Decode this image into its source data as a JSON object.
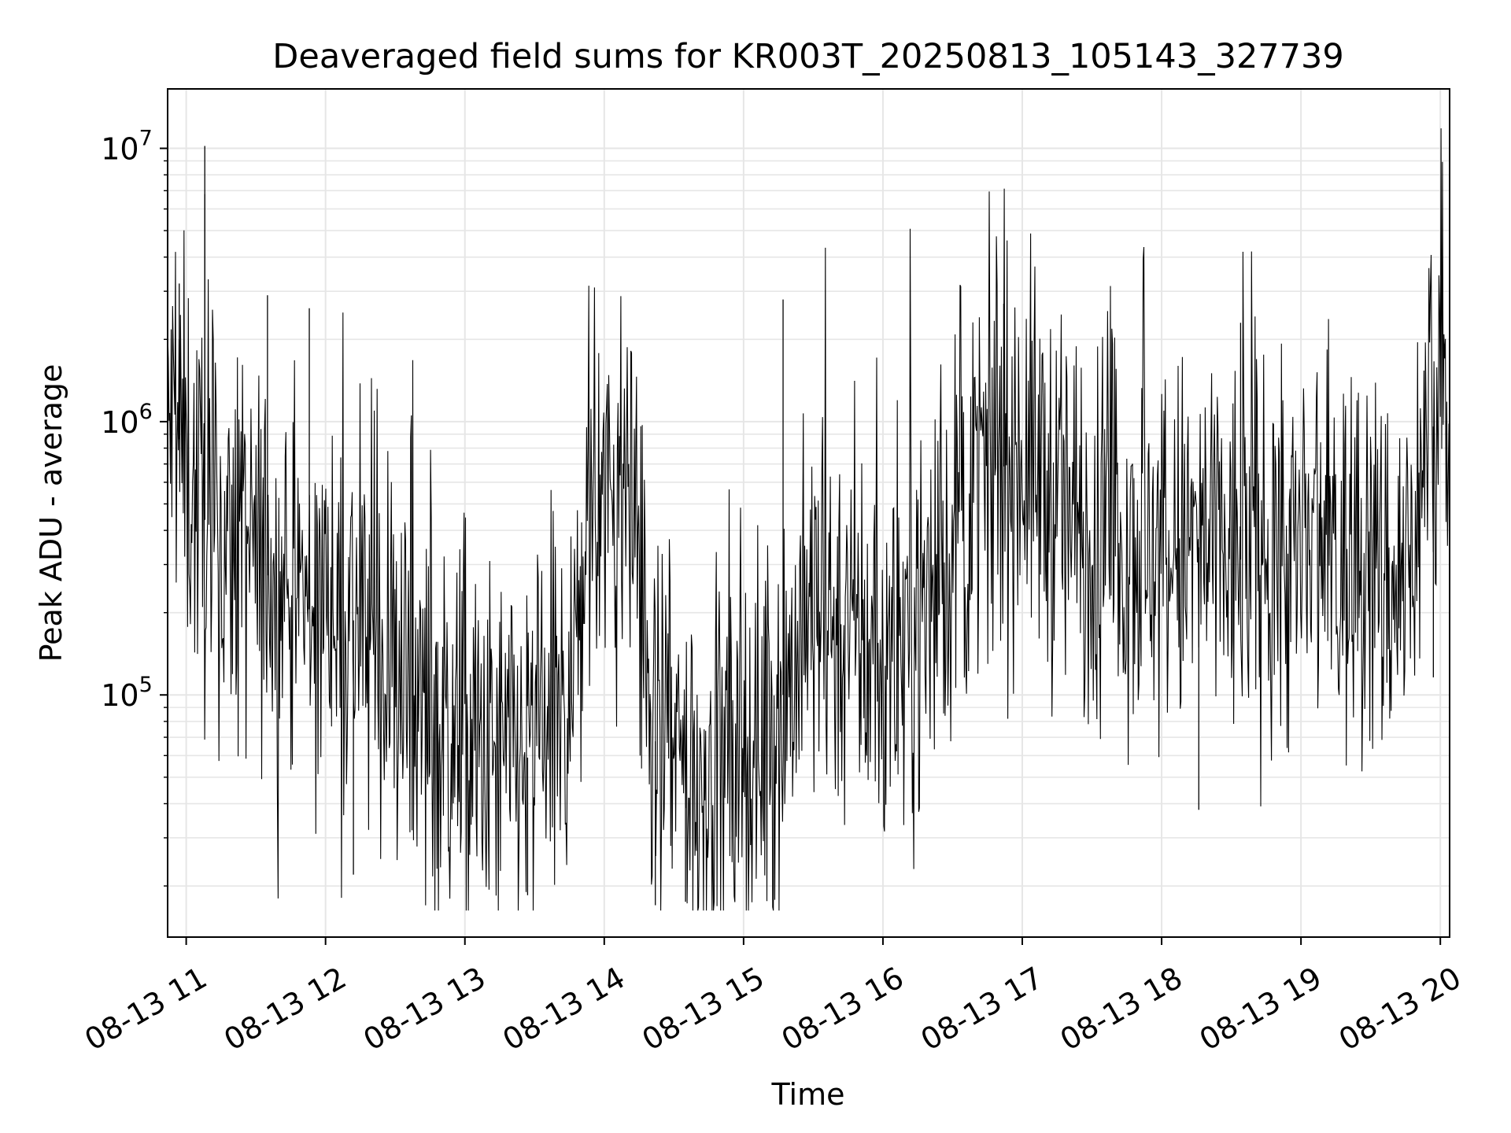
{
  "chart_data": {
    "type": "line",
    "title": "Deaveraged field sums for KR003T_20250813_105143_327739",
    "xlabel": "Time",
    "ylabel": "Peak ADU - average",
    "x_scale": "time",
    "y_scale": "log",
    "xlim": [
      "2025-08-13 10:52",
      "2025-08-13 20:04"
    ],
    "ylim": [
      13000,
      16500000
    ],
    "grid": true,
    "legend": "none",
    "line_color": "#000000",
    "grid_color": "#e6e6e6",
    "x_ticks": [
      "08-13 11",
      "08-13 12",
      "08-13 13",
      "08-13 14",
      "08-13 15",
      "08-13 16",
      "08-13 17",
      "08-13 18",
      "08-13 19",
      "08-13 20"
    ],
    "y_ticks": [
      {
        "base": "10",
        "exp": "5"
      },
      {
        "base": "10",
        "exp": "6"
      },
      {
        "base": "10",
        "exp": "7"
      }
    ],
    "series": [
      {
        "x": [
          "2025-08-13 10:52",
          "2025-08-13 10:55",
          "2025-08-13 10:58",
          "2025-08-13 11:00",
          "2025-08-13 11:05",
          "2025-08-13 11:10",
          "2025-08-13 11:15",
          "2025-08-13 11:20",
          "2025-08-13 11:30",
          "2025-08-13 11:40",
          "2025-08-13 11:50",
          "2025-08-13 12:00",
          "2025-08-13 12:15",
          "2025-08-13 12:30",
          "2025-08-13 12:45",
          "2025-08-13 13:00",
          "2025-08-13 13:15",
          "2025-08-13 13:30",
          "2025-08-13 13:45",
          "2025-08-13 13:55",
          "2025-08-13 14:15",
          "2025-08-13 14:20",
          "2025-08-13 14:40",
          "2025-08-13 15:00",
          "2025-08-13 15:15",
          "2025-08-13 15:30",
          "2025-08-13 15:45",
          "2025-08-13 16:00",
          "2025-08-13 16:15",
          "2025-08-13 16:30",
          "2025-08-13 16:45",
          "2025-08-13 17:00",
          "2025-08-13 17:15",
          "2025-08-13 17:30",
          "2025-08-13 17:45",
          "2025-08-13 18:00",
          "2025-08-13 18:15",
          "2025-08-13 18:30",
          "2025-08-13 18:45",
          "2025-08-13 19:00",
          "2025-08-13 19:15",
          "2025-08-13 19:30",
          "2025-08-13 19:45",
          "2025-08-13 19:55",
          "2025-08-13 20:04"
        ],
        "y": [
          900000,
          1000000,
          800000,
          700000,
          500000,
          400000,
          300000,
          350000,
          300000,
          250000,
          200000,
          220000,
          180000,
          120000,
          80000,
          60000,
          55000,
          60000,
          90000,
          550000,
          450000,
          70000,
          50000,
          50000,
          90000,
          200000,
          180000,
          120000,
          200000,
          350000,
          600000,
          800000,
          500000,
          350000,
          400000,
          300000,
          350000,
          300000,
          350000,
          300000,
          300000,
          280000,
          250000,
          900000,
          1200000
        ],
        "spikes": [
          {
            "x": "2025-08-13 11:08",
            "y": 10200000
          },
          {
            "x": "2025-08-13 11:08",
            "y": 6800000
          },
          {
            "x": "2025-08-13 10:57",
            "y": 3200000
          },
          {
            "x": "2025-08-13 11:35",
            "y": 2900000
          },
          {
            "x": "2025-08-13 11:53",
            "y": 2600000
          },
          {
            "x": "2025-08-13 15:17",
            "y": 2800000
          },
          {
            "x": "2025-08-13 16:52",
            "y": 2700000
          },
          {
            "x": "2025-08-13 18:34",
            "y": 2300000
          },
          {
            "x": "2025-08-13 12:12",
            "y": 22000
          },
          {
            "x": "2025-08-13 13:27",
            "y": 18500
          },
          {
            "x": "2025-08-13 14:22",
            "y": 17000
          },
          {
            "x": "2025-08-13 14:35",
            "y": 17500
          },
          {
            "x": "2025-08-13 18:16",
            "y": 38000
          },
          {
            "x": "2025-08-13 19:57",
            "y": 116000
          }
        ]
      }
    ]
  }
}
